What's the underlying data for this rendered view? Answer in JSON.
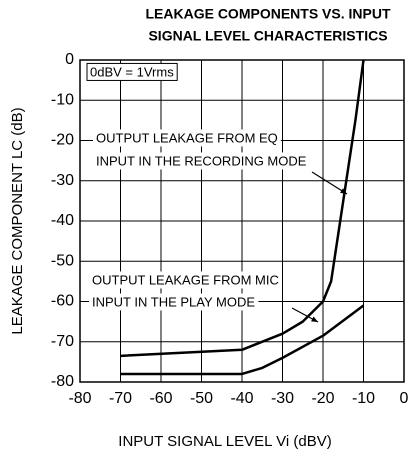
{
  "chart_data": {
    "type": "line",
    "title": [
      "LEAKAGE COMPONENTS VS. INPUT",
      "SIGNAL LEVEL CHARACTERISTICS"
    ],
    "xlabel": "INPUT SIGNAL LEVEL Vi (dBV)",
    "ylabel": "LEAKAGE COMPONENT LC (dB)",
    "xlim": [
      -80,
      0
    ],
    "xticks": [
      -80,
      -70,
      -60,
      -50,
      -40,
      -30,
      -20,
      -10,
      0
    ],
    "ylim": [
      -80,
      0
    ],
    "yticks": [
      0,
      -10,
      -20,
      -30,
      -40,
      -50,
      -60,
      -70,
      -80
    ],
    "grid": true,
    "series": [
      {
        "color": "#000000",
        "x": [
          -70,
          -40,
          -30,
          -25,
          -20,
          -18,
          -15,
          -12,
          -10
        ],
        "values": [
          -73.5,
          -72,
          -68,
          -65,
          -60,
          -55,
          -35,
          -15,
          0
        ]
      },
      {
        "color": "#000000",
        "x": [
          -70,
          -40,
          -35,
          -30,
          -20,
          -10
        ],
        "values": [
          -78,
          -78,
          -76.5,
          -74,
          -68.5,
          -61
        ]
      }
    ],
    "annotations": [
      {
        "lines": [
          "0dBV = 1Vrms"
        ]
      },
      {
        "lines": [
          "OUTPUT LEAKAGE FROM EQ",
          "INPUT IN THE RECORDING MODE"
        ]
      },
      {
        "lines": [
          "OUTPUT LEAKAGE FROM MIC",
          "INPUT IN THE PLAY MODE"
        ]
      }
    ]
  }
}
